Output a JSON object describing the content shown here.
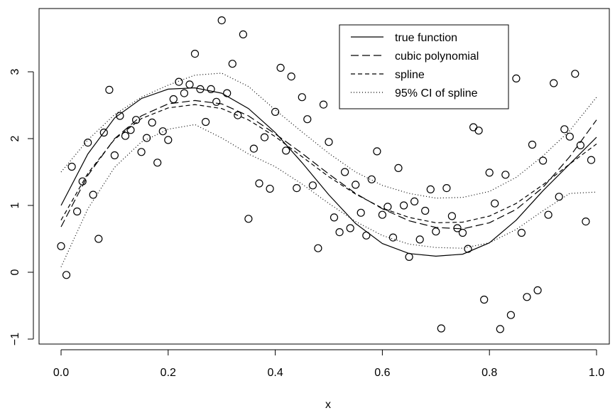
{
  "chart_data": {
    "type": "scatter",
    "title": "",
    "xlabel": "x",
    "ylabel": "",
    "xlim": [
      0,
      1
    ],
    "ylim": [
      -1,
      3.8
    ],
    "xticks": [
      {
        "value": 0.0,
        "label": "0.0"
      },
      {
        "value": 0.2,
        "label": "0.2"
      },
      {
        "value": 0.4,
        "label": "0.4"
      },
      {
        "value": 0.6,
        "label": "0.6"
      },
      {
        "value": 0.8,
        "label": "0.8"
      },
      {
        "value": 1.0,
        "label": "1.0"
      }
    ],
    "yticks": [
      {
        "value": -1,
        "label": "−1"
      },
      {
        "value": 0,
        "label": "0"
      },
      {
        "value": 1,
        "label": "1"
      },
      {
        "value": 2,
        "label": "2"
      },
      {
        "value": 3,
        "label": "3"
      }
    ],
    "grid": false,
    "legend_position": "top-right",
    "legend": [
      {
        "label": "true function",
        "dash": "solid"
      },
      {
        "label": "cubic polynomial",
        "dash": "longdash"
      },
      {
        "label": "spline",
        "dash": "dashed"
      },
      {
        "label": "95% CI of spline",
        "dash": "dotted"
      }
    ],
    "points": [
      [
        0.0,
        0.39
      ],
      [
        0.01,
        -0.04
      ],
      [
        0.02,
        1.58
      ],
      [
        0.03,
        0.91
      ],
      [
        0.04,
        1.36
      ],
      [
        0.05,
        1.94
      ],
      [
        0.06,
        1.16
      ],
      [
        0.07,
        0.5
      ],
      [
        0.08,
        2.09
      ],
      [
        0.09,
        2.73
      ],
      [
        0.1,
        1.75
      ],
      [
        0.11,
        2.34
      ],
      [
        0.12,
        2.04
      ],
      [
        0.13,
        2.13
      ],
      [
        0.14,
        2.28
      ],
      [
        0.15,
        1.8
      ],
      [
        0.16,
        2.01
      ],
      [
        0.17,
        2.24
      ],
      [
        0.18,
        1.64
      ],
      [
        0.19,
        2.11
      ],
      [
        0.2,
        1.98
      ],
      [
        0.21,
        2.59
      ],
      [
        0.22,
        2.85
      ],
      [
        0.23,
        2.68
      ],
      [
        0.24,
        2.81
      ],
      [
        0.25,
        3.27
      ],
      [
        0.26,
        2.74
      ],
      [
        0.27,
        2.25
      ],
      [
        0.28,
        2.74
      ],
      [
        0.29,
        2.55
      ],
      [
        0.3,
        3.77
      ],
      [
        0.31,
        2.68
      ],
      [
        0.32,
        3.12
      ],
      [
        0.33,
        2.35
      ],
      [
        0.34,
        3.56
      ],
      [
        0.35,
        0.8
      ],
      [
        0.36,
        1.85
      ],
      [
        0.37,
        1.33
      ],
      [
        0.38,
        2.02
      ],
      [
        0.39,
        1.25
      ],
      [
        0.4,
        2.4
      ],
      [
        0.41,
        3.06
      ],
      [
        0.42,
        1.82
      ],
      [
        0.43,
        2.93
      ],
      [
        0.44,
        1.26
      ],
      [
        0.45,
        2.62
      ],
      [
        0.46,
        2.29
      ],
      [
        0.47,
        1.3
      ],
      [
        0.48,
        0.36
      ],
      [
        0.49,
        2.51
      ],
      [
        0.5,
        1.95
      ],
      [
        0.51,
        0.82
      ],
      [
        0.52,
        0.6
      ],
      [
        0.53,
        1.5
      ],
      [
        0.54,
        0.66
      ],
      [
        0.55,
        1.31
      ],
      [
        0.56,
        0.89
      ],
      [
        0.57,
        0.55
      ],
      [
        0.58,
        1.39
      ],
      [
        0.59,
        1.81
      ],
      [
        0.6,
        0.86
      ],
      [
        0.61,
        0.98
      ],
      [
        0.62,
        0.52
      ],
      [
        0.63,
        1.56
      ],
      [
        0.64,
        1.0
      ],
      [
        0.65,
        0.23
      ],
      [
        0.66,
        1.06
      ],
      [
        0.67,
        0.49
      ],
      [
        0.68,
        0.92
      ],
      [
        0.69,
        1.24
      ],
      [
        0.7,
        0.61
      ],
      [
        0.71,
        -0.84
      ],
      [
        0.72,
        1.26
      ],
      [
        0.73,
        0.84
      ],
      [
        0.74,
        0.66
      ],
      [
        0.75,
        0.59
      ],
      [
        0.76,
        0.35
      ],
      [
        0.77,
        2.17
      ],
      [
        0.78,
        2.12
      ],
      [
        0.79,
        -0.41
      ],
      [
        0.8,
        1.49
      ],
      [
        0.81,
        1.03
      ],
      [
        0.82,
        -0.85
      ],
      [
        0.83,
        1.46
      ],
      [
        0.84,
        -0.64
      ],
      [
        0.85,
        2.9
      ],
      [
        0.86,
        0.59
      ],
      [
        0.87,
        -0.37
      ],
      [
        0.88,
        1.91
      ],
      [
        0.89,
        -0.27
      ],
      [
        0.9,
        1.67
      ],
      [
        0.91,
        0.86
      ],
      [
        0.92,
        2.83
      ],
      [
        0.93,
        1.13
      ],
      [
        0.94,
        2.14
      ],
      [
        0.95,
        2.03
      ],
      [
        0.96,
        2.97
      ],
      [
        0.97,
        1.9
      ],
      [
        0.98,
        0.76
      ],
      [
        0.99,
        1.68
      ]
    ],
    "curves": {
      "true_function": [
        [
          0.0,
          1.0
        ],
        [
          0.05,
          1.77
        ],
        [
          0.1,
          2.31
        ],
        [
          0.15,
          2.6
        ],
        [
          0.2,
          2.74
        ],
        [
          0.25,
          2.76
        ],
        [
          0.3,
          2.68
        ],
        [
          0.35,
          2.45
        ],
        [
          0.4,
          2.09
        ],
        [
          0.45,
          1.64
        ],
        [
          0.5,
          1.16
        ],
        [
          0.55,
          0.73
        ],
        [
          0.6,
          0.43
        ],
        [
          0.65,
          0.28
        ],
        [
          0.7,
          0.24
        ],
        [
          0.75,
          0.27
        ],
        [
          0.8,
          0.44
        ],
        [
          0.85,
          0.78
        ],
        [
          0.9,
          1.22
        ],
        [
          0.95,
          1.62
        ],
        [
          1.0,
          2.02
        ]
      ],
      "cubic_polynomial": [
        [
          0.0,
          0.68
        ],
        [
          0.05,
          1.45
        ],
        [
          0.1,
          2.0
        ],
        [
          0.15,
          2.34
        ],
        [
          0.2,
          2.52
        ],
        [
          0.25,
          2.57
        ],
        [
          0.3,
          2.52
        ],
        [
          0.35,
          2.34
        ],
        [
          0.4,
          2.07
        ],
        [
          0.45,
          1.78
        ],
        [
          0.5,
          1.47
        ],
        [
          0.55,
          1.18
        ],
        [
          0.6,
          0.95
        ],
        [
          0.65,
          0.77
        ],
        [
          0.7,
          0.67
        ],
        [
          0.75,
          0.65
        ],
        [
          0.8,
          0.74
        ],
        [
          0.85,
          0.94
        ],
        [
          0.9,
          1.27
        ],
        [
          0.95,
          1.73
        ],
        [
          1.0,
          2.28
        ]
      ],
      "spline": [
        [
          0.0,
          0.78
        ],
        [
          0.05,
          1.48
        ],
        [
          0.1,
          1.99
        ],
        [
          0.15,
          2.3
        ],
        [
          0.2,
          2.46
        ],
        [
          0.25,
          2.51
        ],
        [
          0.3,
          2.45
        ],
        [
          0.35,
          2.28
        ],
        [
          0.4,
          2.03
        ],
        [
          0.45,
          1.73
        ],
        [
          0.5,
          1.43
        ],
        [
          0.55,
          1.17
        ],
        [
          0.6,
          0.96
        ],
        [
          0.65,
          0.82
        ],
        [
          0.7,
          0.74
        ],
        [
          0.75,
          0.75
        ],
        [
          0.8,
          0.84
        ],
        [
          0.85,
          1.03
        ],
        [
          0.9,
          1.31
        ],
        [
          0.95,
          1.62
        ],
        [
          1.0,
          1.92
        ]
      ],
      "ci_upper": [
        [
          0.0,
          1.5
        ],
        [
          0.05,
          1.98
        ],
        [
          0.1,
          2.36
        ],
        [
          0.15,
          2.62
        ],
        [
          0.2,
          2.8
        ],
        [
          0.25,
          2.95
        ],
        [
          0.3,
          2.98
        ],
        [
          0.35,
          2.78
        ],
        [
          0.4,
          2.43
        ],
        [
          0.45,
          2.1
        ],
        [
          0.5,
          1.78
        ],
        [
          0.55,
          1.5
        ],
        [
          0.6,
          1.3
        ],
        [
          0.65,
          1.18
        ],
        [
          0.7,
          1.11
        ],
        [
          0.75,
          1.12
        ],
        [
          0.8,
          1.21
        ],
        [
          0.85,
          1.42
        ],
        [
          0.9,
          1.74
        ],
        [
          0.95,
          2.12
        ],
        [
          1.0,
          2.62
        ]
      ],
      "ci_lower": [
        [
          0.0,
          0.08
        ],
        [
          0.05,
          0.95
        ],
        [
          0.1,
          1.57
        ],
        [
          0.15,
          1.95
        ],
        [
          0.2,
          2.14
        ],
        [
          0.25,
          2.21
        ],
        [
          0.3,
          2.01
        ],
        [
          0.35,
          1.77
        ],
        [
          0.4,
          1.58
        ],
        [
          0.45,
          1.32
        ],
        [
          0.5,
          1.03
        ],
        [
          0.55,
          0.76
        ],
        [
          0.6,
          0.55
        ],
        [
          0.65,
          0.42
        ],
        [
          0.7,
          0.37
        ],
        [
          0.75,
          0.36
        ],
        [
          0.8,
          0.44
        ],
        [
          0.85,
          0.64
        ],
        [
          0.9,
          0.92
        ],
        [
          0.95,
          1.18
        ],
        [
          1.0,
          1.2
        ]
      ]
    }
  }
}
